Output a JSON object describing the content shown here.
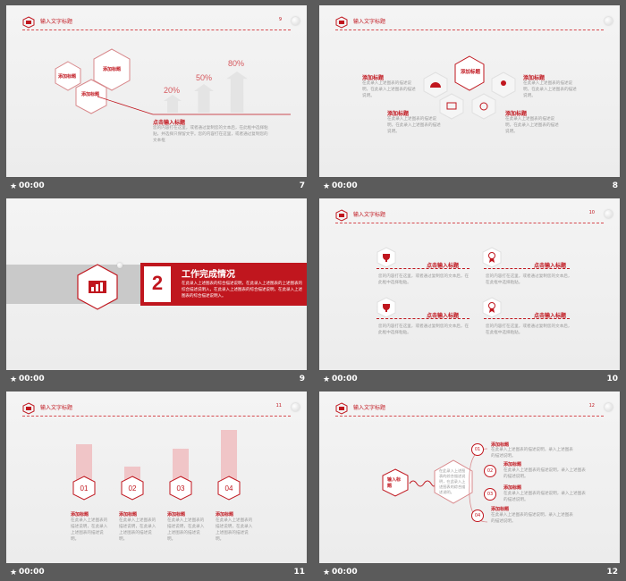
{
  "footer_time": "00:00",
  "header_title": "输入文字标题",
  "s7": {
    "page": "7",
    "hdr_pg": "9",
    "hex_labels": [
      "添加标题",
      "添加标题",
      "添加标题"
    ],
    "pcts": [
      "20%",
      "50%",
      "80%"
    ],
    "title": "点击输入标题",
    "body": "您的内容打在这里，或者通过复制您的文本后，在此框中选择粘贴，并选择只保留文字。您的内容打在这里，或者通过复制您的文本框"
  },
  "s8": {
    "page": "8",
    "center_label": "添加标题",
    "items": [
      {
        "title": "添加标题",
        "body": "在此录入上述图表的描述说明，在此录入上述图表的描述说明。"
      },
      {
        "title": "添加标题",
        "body": "在此录入上述图表的描述说明，在此录入上述图表的描述说明。"
      },
      {
        "title": "添加标题",
        "body": "在此录入上述图表的描述说明，在此录入上述图表的描述说明。"
      },
      {
        "title": "添加标题",
        "body": "在此录入上述图表的描述说明，在此录入上述图表的描述说明。"
      }
    ]
  },
  "s9": {
    "page": "9",
    "number": "2",
    "title": "工作完成情况",
    "body": "在此录入上述图表的综合描述说明，在此录入上述图表的上述图表的综合描述说明入，在此录入上述图表的综合描述说明，在此录入上述图表的综合描述说明入。"
  },
  "s10": {
    "page": "10",
    "hdr_pg": "10",
    "items": [
      {
        "title": "点击输入标题",
        "body": "您的内容打在这里，或者通过复制您的文本后，在此框中选择粘贴。"
      },
      {
        "title": "点击输入标题",
        "body": "您的内容打在这里，或者通过复制您的文本后，在此框中选择粘贴。"
      },
      {
        "title": "点击输入标题",
        "body": "您的内容打在这里，或者通过复制您的文本后，在此框中选择粘贴。"
      },
      {
        "title": "点击输入标题",
        "body": "您的内容打在这里，或者通过复制您的文本后，在此框中选择粘贴。"
      }
    ]
  },
  "s11": {
    "page": "11",
    "hdr_pg": "11",
    "items": [
      {
        "num": "01",
        "title": "添加标题",
        "body": "在此录入上述图表的描述说明，在此录入上述图表的描述说明。",
        "value": 0.64
      },
      {
        "num": "02",
        "title": "添加标题",
        "body": "在此录入上述图表的描述说明，在此录入上述图表的描述说明。",
        "value": 0.31
      },
      {
        "num": "03",
        "title": "添加标题",
        "body": "在此录入上述图表的描述说明，在此录入上述图表的描述说明。",
        "value": 0.58
      },
      {
        "num": "04",
        "title": "添加标题",
        "body": "在此录入上述图表的描述说明，在此录入上述图表的描述说明。",
        "value": 0.86
      }
    ]
  },
  "s12": {
    "page": "12",
    "hdr_pg": "12",
    "main_label": "输入标题",
    "center_text": "在此录入上述图表的综合描述说明，在此录入上述图表的综合描述说明。",
    "items": [
      {
        "num": "01",
        "title": "添加标题",
        "body": "在此录入上述图表的描述说明，录入上述图表的描述说明。"
      },
      {
        "num": "02",
        "title": "添加标题",
        "body": "在此录入上述图表的描述说明，录入上述图表的描述说明。"
      },
      {
        "num": "03",
        "title": "添加标题",
        "body": "在此录入上述图表的描述说明，录入上述图表的描述说明。"
      },
      {
        "num": "04",
        "title": "添加标题",
        "body": "在此录入上述图表的描述说明，录入上述图表的描述说明。"
      }
    ]
  }
}
